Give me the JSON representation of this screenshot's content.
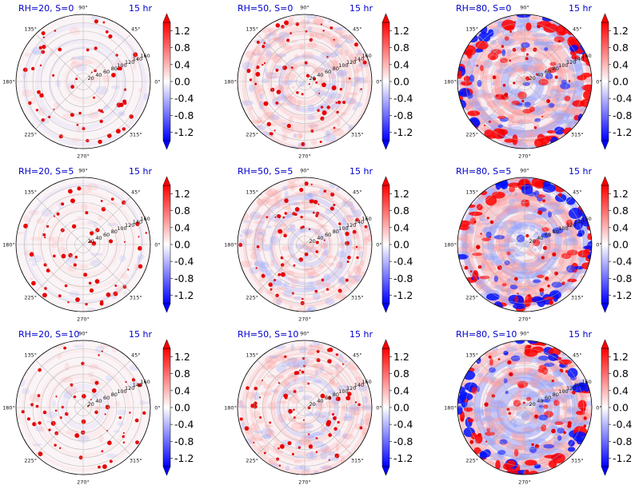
{
  "chart_data": {
    "type": "heatmap",
    "layout": "3x3 polar panels",
    "angular_ticks": [
      "90°",
      "45°",
      "0°",
      "315°",
      "270°",
      "225°",
      "180°",
      "135°"
    ],
    "radial_ticks": [
      "20",
      "40",
      "60",
      "80",
      "100",
      "120",
      "140",
      "160"
    ],
    "radial_range": [
      0,
      160
    ],
    "colorbar": {
      "colormap": "bwr",
      "ticks": [
        "1.2",
        "0.8",
        "0.4",
        "0.0",
        "-0.4",
        "-0.8",
        "-1.2"
      ],
      "range": [
        -1.4,
        1.4
      ]
    },
    "panels": [
      {
        "title": "RH=20, S=0",
        "time": "15 hr",
        "rh": 20,
        "s": 0
      },
      {
        "title": "RH=50, S=0",
        "time": "15 hr",
        "rh": 50,
        "s": 0
      },
      {
        "title": "RH=80, S=0",
        "time": "15 hr",
        "rh": 80,
        "s": 0
      },
      {
        "title": "RH=20, S=5",
        "time": "15 hr",
        "rh": 20,
        "s": 5
      },
      {
        "title": "RH=50, S=5",
        "time": "15 hr",
        "rh": 50,
        "s": 5
      },
      {
        "title": "RH=80, S=5",
        "time": "15 hr",
        "rh": 80,
        "s": 5
      },
      {
        "title": "RH=20, S=10",
        "time": "15 hr",
        "rh": 20,
        "s": 10
      },
      {
        "title": "RH=50, S=10",
        "time": "15 hr",
        "rh": 50,
        "s": 10
      },
      {
        "title": "RH=80, S=10",
        "time": "15 hr",
        "rh": 80,
        "s": 10
      }
    ]
  }
}
